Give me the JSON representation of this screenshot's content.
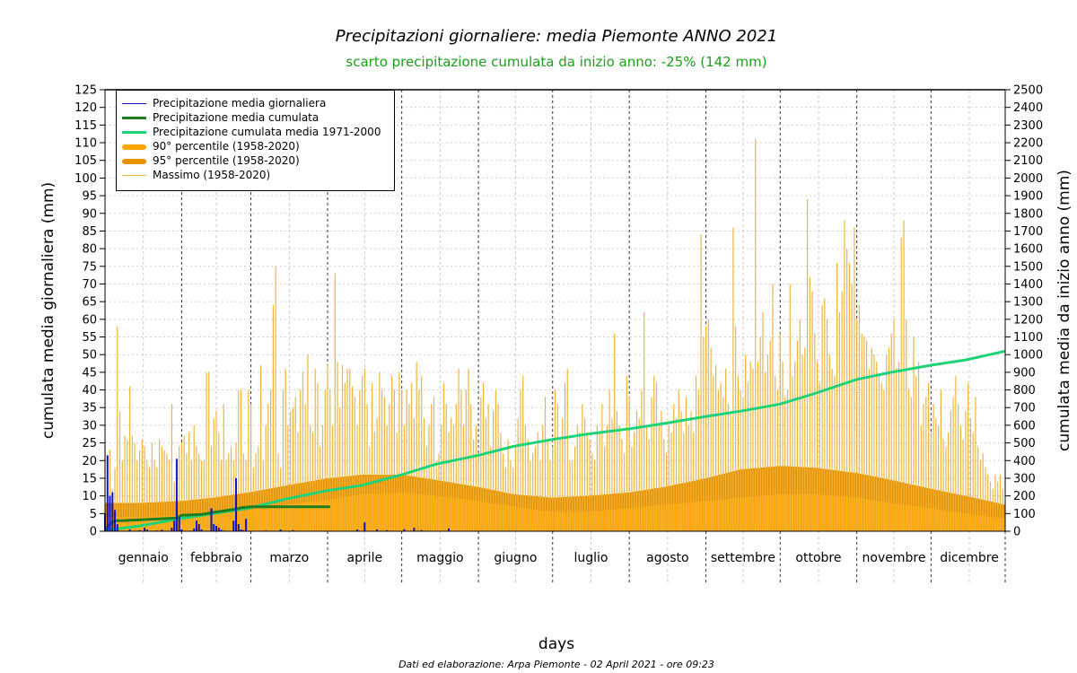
{
  "title": "Precipitazioni giornaliere: media Piemonte ANNO 2021",
  "subtitle": "scarto precipitazione cumulata da inizio anno: -25% (142 mm)",
  "xlabel": "days",
  "ylabel_left": "cumulata media giornaliera (mm)",
  "ylabel_right": "cumulata media da inizio anno (mm)",
  "credit": "Dati ed elaborazione: Arpa Piemonte - 02 April 2021 - ore 09:23",
  "legend": [
    {
      "label": "Precipitazione media giornaliera",
      "color": "#1414c8",
      "kind": "thin"
    },
    {
      "label": "Precipitazione media cumulata",
      "color": "#1e7d1e",
      "kind": "medium"
    },
    {
      "label": "Precipitazione cumulata media 1971-2000",
      "color": "#1ed278",
      "kind": "medium"
    },
    {
      "label": "90° percentile (1958-2020)",
      "color": "#ffa500",
      "kind": "thick"
    },
    {
      "label": "95° percentile (1958-2020)",
      "color": "#e69100",
      "kind": "thick"
    },
    {
      "label": "Massimo (1958-2020)",
      "color": "#f0b43c",
      "kind": "thin"
    }
  ],
  "chart_data": {
    "type": "bar",
    "months": [
      "gennaio",
      "febbraio",
      "marzo",
      "aprile",
      "maggio",
      "giugno",
      "luglio",
      "agosto",
      "settembre",
      "ottobre",
      "novembre",
      "dicembre"
    ],
    "y_left": {
      "label": "cumulata media giornaliera (mm)",
      "range": [
        0,
        125
      ],
      "step": 5
    },
    "y_right": {
      "label": "cumulata media da inizio anno (mm)",
      "range": [
        0,
        2500
      ],
      "step": 100
    },
    "x_range_days": [
      1,
      365
    ],
    "grid": true,
    "legend_position": "top-left",
    "colors": {
      "daily": "#1414c8",
      "cumulated_2021": "#1e7d1e",
      "cumulated_normal": "#1ed278",
      "p90": "#ffa500",
      "p95": "#e69100",
      "max": "#f0b43c"
    },
    "max_1958_2020": [
      24,
      20,
      23,
      12,
      18,
      58,
      34,
      20,
      27,
      26,
      41,
      27,
      25,
      20,
      23,
      26,
      24,
      20,
      18,
      25,
      20,
      18,
      26,
      24,
      23,
      22,
      20,
      36,
      14,
      20,
      24,
      25,
      27,
      22,
      28,
      20,
      30,
      24,
      22,
      20,
      20,
      45,
      45,
      24,
      32,
      34,
      28,
      20,
      36,
      20,
      22,
      24,
      20,
      25,
      40,
      40,
      22,
      20,
      40,
      36,
      18,
      22,
      24,
      47,
      20,
      30,
      36,
      40,
      64,
      75,
      22,
      18,
      40,
      46,
      30,
      34,
      35,
      38,
      28,
      40,
      45,
      36,
      50,
      30,
      28,
      46,
      42,
      24,
      30,
      40,
      47,
      40,
      30,
      73,
      48,
      35,
      47,
      42,
      46,
      46,
      41,
      38,
      30,
      40,
      44,
      46,
      36,
      24,
      42,
      28,
      32,
      45,
      40,
      38,
      30,
      36,
      44,
      40,
      28,
      45,
      40,
      30,
      40,
      36,
      42,
      32,
      48,
      40,
      44,
      32,
      24,
      30,
      36,
      38,
      20,
      22,
      30,
      42,
      36,
      28,
      32,
      30,
      36,
      46,
      40,
      30,
      40,
      46,
      36,
      26,
      30,
      22,
      38,
      42,
      32,
      36,
      24,
      34,
      40,
      36,
      28,
      22,
      18,
      26,
      20,
      18,
      24,
      32,
      40,
      44,
      30,
      26,
      20,
      22,
      24,
      28,
      20,
      30,
      38,
      26,
      20,
      24,
      40,
      36,
      26,
      32,
      42,
      46,
      20,
      20,
      24,
      30,
      28,
      36,
      32,
      28,
      26,
      22,
      20,
      30,
      28,
      36,
      24,
      30,
      40,
      32,
      56,
      34,
      30,
      26,
      22,
      44,
      38,
      24,
      28,
      34,
      32,
      40,
      62,
      30,
      26,
      38,
      44,
      42,
      30,
      34,
      26,
      22,
      30,
      28,
      36,
      32,
      40,
      34,
      28,
      38,
      30,
      34,
      28,
      44,
      40,
      84,
      55,
      58,
      60,
      52,
      44,
      47,
      40,
      42,
      38,
      46,
      36,
      34,
      86,
      58,
      44,
      40,
      38,
      50,
      42,
      48,
      46,
      111,
      48,
      55,
      62,
      45,
      50,
      54,
      70,
      44,
      40,
      56,
      48,
      38,
      40,
      70,
      44,
      48,
      54,
      60,
      50,
      52,
      94,
      72,
      68,
      56,
      48,
      42,
      64,
      66,
      60,
      50,
      46,
      44,
      76,
      62,
      68,
      88,
      80,
      76,
      70,
      86,
      60,
      64,
      56,
      55,
      54,
      46,
      52,
      50,
      48,
      44,
      42,
      40,
      50,
      52,
      56,
      60,
      46,
      48,
      83,
      88,
      60,
      40,
      38,
      55,
      44,
      48,
      30,
      36,
      38,
      42,
      28,
      36,
      32,
      30,
      40,
      26,
      24,
      28,
      34,
      38,
      44,
      36,
      30,
      26,
      34,
      42,
      32,
      28,
      38,
      24,
      20,
      22,
      18,
      16,
      14,
      12,
      16,
      14,
      16,
      12
    ],
    "daily_2021": [
      5,
      21.5,
      10,
      11,
      6,
      2,
      0,
      0,
      0,
      0,
      0.5,
      0,
      0,
      0,
      0.3,
      0,
      1,
      0.5,
      0,
      0,
      0,
      0.2,
      0,
      0.4,
      0,
      0,
      0,
      1,
      3,
      20.5,
      4,
      0.5,
      0,
      0,
      0,
      0,
      0.8,
      3,
      2,
      0.5,
      0,
      0,
      0,
      6.5,
      2,
      1.5,
      1,
      0.4,
      0.2,
      0,
      0,
      0,
      3,
      15,
      2,
      0.5,
      0.3,
      3.5,
      0,
      0,
      0,
      0,
      0,
      0,
      0,
      0.2,
      0,
      0,
      0,
      0,
      0,
      0.5,
      0,
      0,
      0,
      0,
      0.3,
      0,
      0,
      0,
      0,
      0,
      0,
      0,
      0,
      0,
      0,
      0,
      0,
      0,
      0,
      0,
      0,
      0,
      0,
      0,
      0,
      0,
      0,
      0,
      0,
      0,
      0.5,
      0,
      0,
      2.5,
      0,
      0,
      0,
      0,
      0.5,
      0,
      0,
      0,
      0.3,
      0,
      0,
      0,
      0,
      0,
      0,
      0.6,
      0,
      0,
      0,
      1,
      0,
      0,
      0.3,
      0,
      0,
      0,
      0,
      0,
      0,
      0,
      0,
      0,
      0,
      0.8,
      0,
      0,
      0
    ],
    "cumulated_2021": [
      [
        1,
        5
      ],
      [
        3,
        40
      ],
      [
        5,
        60
      ],
      [
        8,
        60
      ],
      [
        30,
        75
      ],
      [
        32,
        90
      ],
      [
        40,
        95
      ],
      [
        44,
        105
      ],
      [
        54,
        125
      ],
      [
        56,
        133
      ],
      [
        60,
        138
      ],
      [
        92,
        138
      ]
    ],
    "cumulated_normal_1971_2000": [
      [
        1,
        5
      ],
      [
        15,
        30
      ],
      [
        31,
        70
      ],
      [
        45,
        100
      ],
      [
        59,
        130
      ],
      [
        75,
        185
      ],
      [
        91,
        230
      ],
      [
        105,
        260
      ],
      [
        121,
        320
      ],
      [
        135,
        380
      ],
      [
        152,
        430
      ],
      [
        166,
        480
      ],
      [
        182,
        520
      ],
      [
        196,
        550
      ],
      [
        213,
        580
      ],
      [
        227,
        610
      ],
      [
        244,
        650
      ],
      [
        258,
        680
      ],
      [
        274,
        720
      ],
      [
        288,
        780
      ],
      [
        305,
        860
      ],
      [
        319,
        900
      ],
      [
        335,
        940
      ],
      [
        349,
        970
      ],
      [
        365,
        1020
      ]
    ],
    "p95_1958_2020": [
      [
        1,
        8
      ],
      [
        15,
        8
      ],
      [
        31,
        8.5
      ],
      [
        45,
        9.5
      ],
      [
        59,
        11
      ],
      [
        75,
        13
      ],
      [
        91,
        15
      ],
      [
        105,
        16
      ],
      [
        121,
        16
      ],
      [
        135,
        14.5
      ],
      [
        152,
        12.5
      ],
      [
        166,
        10.5
      ],
      [
        182,
        9.5
      ],
      [
        196,
        10
      ],
      [
        213,
        11
      ],
      [
        227,
        12.5
      ],
      [
        244,
        15
      ],
      [
        258,
        17.5
      ],
      [
        274,
        18.5
      ],
      [
        288,
        18
      ],
      [
        305,
        16.5
      ],
      [
        319,
        14.5
      ],
      [
        335,
        12
      ],
      [
        349,
        10
      ],
      [
        365,
        7.5
      ]
    ],
    "p90_1958_2020": [
      [
        1,
        4
      ],
      [
        15,
        4
      ],
      [
        31,
        4.5
      ],
      [
        45,
        5
      ],
      [
        59,
        6
      ],
      [
        75,
        7.5
      ],
      [
        91,
        9
      ],
      [
        105,
        10.5
      ],
      [
        121,
        11
      ],
      [
        135,
        10
      ],
      [
        152,
        8.5
      ],
      [
        166,
        7
      ],
      [
        182,
        5.5
      ],
      [
        196,
        5.5
      ],
      [
        213,
        6.5
      ],
      [
        227,
        7.5
      ],
      [
        244,
        8.5
      ],
      [
        258,
        9.5
      ],
      [
        274,
        10.5
      ],
      [
        288,
        10.5
      ],
      [
        305,
        9.5
      ],
      [
        319,
        8
      ],
      [
        335,
        6.5
      ],
      [
        349,
        5
      ],
      [
        365,
        3.5
      ]
    ]
  }
}
